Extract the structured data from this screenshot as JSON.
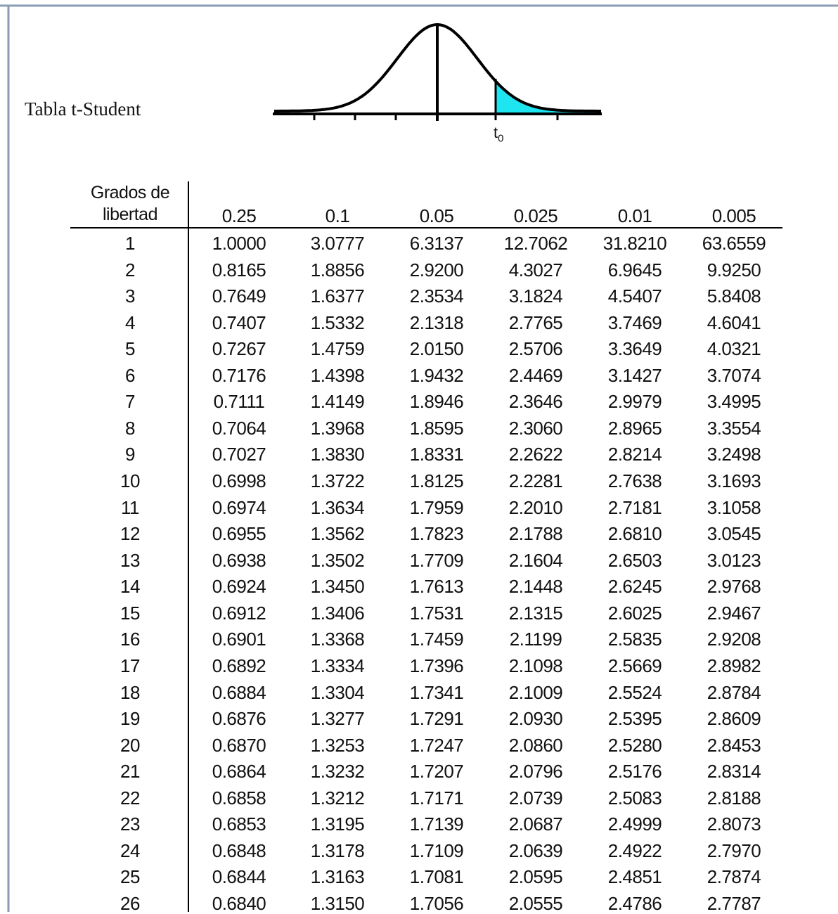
{
  "header": {
    "title": "Tabla t-Student"
  },
  "diagram": {
    "label": {
      "base": "t",
      "subscript": "0"
    }
  },
  "table": {
    "columns": [
      "Grados de libertad",
      "0.25",
      "0.1",
      "0.05",
      "0.025",
      "0.01",
      "0.005"
    ],
    "rows": [
      [
        "1",
        "1.0000",
        "3.0777",
        "6.3137",
        "12.7062",
        "31.8210",
        "63.6559"
      ],
      [
        "2",
        "0.8165",
        "1.8856",
        "2.9200",
        "4.3027",
        "6.9645",
        "9.9250"
      ],
      [
        "3",
        "0.7649",
        "1.6377",
        "2.3534",
        "3.1824",
        "4.5407",
        "5.8408"
      ],
      [
        "4",
        "0.7407",
        "1.5332",
        "2.1318",
        "2.7765",
        "3.7469",
        "4.6041"
      ],
      [
        "5",
        "0.7267",
        "1.4759",
        "2.0150",
        "2.5706",
        "3.3649",
        "4.0321"
      ],
      [
        "6",
        "0.7176",
        "1.4398",
        "1.9432",
        "2.4469",
        "3.1427",
        "3.7074"
      ],
      [
        "7",
        "0.7111",
        "1.4149",
        "1.8946",
        "2.3646",
        "2.9979",
        "3.4995"
      ],
      [
        "8",
        "0.7064",
        "1.3968",
        "1.8595",
        "2.3060",
        "2.8965",
        "3.3554"
      ],
      [
        "9",
        "0.7027",
        "1.3830",
        "1.8331",
        "2.2622",
        "2.8214",
        "3.2498"
      ],
      [
        "10",
        "0.6998",
        "1.3722",
        "1.8125",
        "2.2281",
        "2.7638",
        "3.1693"
      ],
      [
        "11",
        "0.6974",
        "1.3634",
        "1.7959",
        "2.2010",
        "2.7181",
        "3.1058"
      ],
      [
        "12",
        "0.6955",
        "1.3562",
        "1.7823",
        "2.1788",
        "2.6810",
        "3.0545"
      ],
      [
        "13",
        "0.6938",
        "1.3502",
        "1.7709",
        "2.1604",
        "2.6503",
        "3.0123"
      ],
      [
        "14",
        "0.6924",
        "1.3450",
        "1.7613",
        "2.1448",
        "2.6245",
        "2.9768"
      ],
      [
        "15",
        "0.6912",
        "1.3406",
        "1.7531",
        "2.1315",
        "2.6025",
        "2.9467"
      ],
      [
        "16",
        "0.6901",
        "1.3368",
        "1.7459",
        "2.1199",
        "2.5835",
        "2.9208"
      ],
      [
        "17",
        "0.6892",
        "1.3334",
        "1.7396",
        "2.1098",
        "2.5669",
        "2.8982"
      ],
      [
        "18",
        "0.6884",
        "1.3304",
        "1.7341",
        "2.1009",
        "2.5524",
        "2.8784"
      ],
      [
        "19",
        "0.6876",
        "1.3277",
        "1.7291",
        "2.0930",
        "2.5395",
        "2.8609"
      ],
      [
        "20",
        "0.6870",
        "1.3253",
        "1.7247",
        "2.0860",
        "2.5280",
        "2.8453"
      ],
      [
        "21",
        "0.6864",
        "1.3232",
        "1.7207",
        "2.0796",
        "2.5176",
        "2.8314"
      ],
      [
        "22",
        "0.6858",
        "1.3212",
        "1.7171",
        "2.0739",
        "2.5083",
        "2.8188"
      ],
      [
        "23",
        "0.6853",
        "1.3195",
        "1.7139",
        "2.0687",
        "2.4999",
        "2.8073"
      ],
      [
        "24",
        "0.6848",
        "1.3178",
        "1.7109",
        "2.0639",
        "2.4922",
        "2.7970"
      ],
      [
        "25",
        "0.6844",
        "1.3163",
        "1.7081",
        "2.0595",
        "2.4851",
        "2.7874"
      ],
      [
        "26",
        "0.6840",
        "1.3150",
        "1.7056",
        "2.0555",
        "2.4786",
        "2.7787"
      ]
    ]
  }
}
